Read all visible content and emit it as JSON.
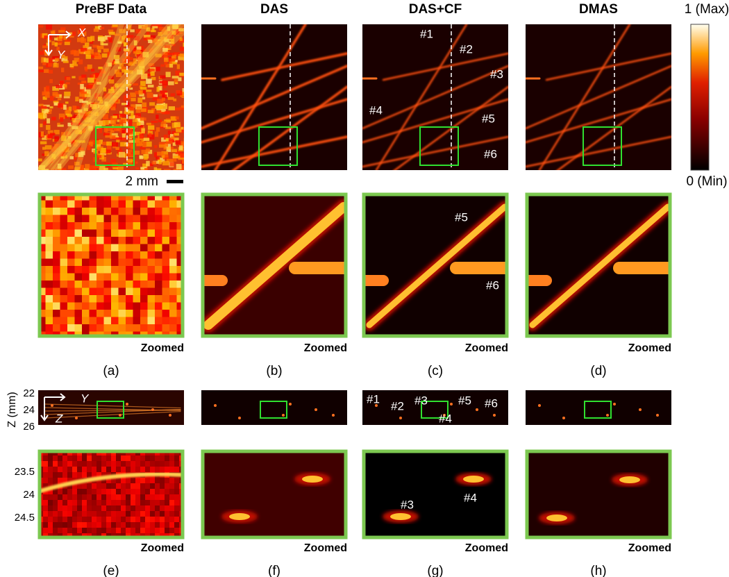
{
  "columns": [
    {
      "title": "PreBF Data"
    },
    {
      "title": "DAS"
    },
    {
      "title": "DAS+CF"
    },
    {
      "title": "DMAS"
    }
  ],
  "colorbar": {
    "max_label": "1 (Max)",
    "min_label": "0 (Min)"
  },
  "scale_bar": "2 mm",
  "zoomed_label": "Zoomed",
  "letters": [
    "(a)",
    "(b)",
    "(c)",
    "(d)",
    "(e)",
    "(f)",
    "(g)",
    "(h)"
  ],
  "axis_labels": {
    "top_x": "X",
    "top_y": "Y",
    "side_y": "Y",
    "side_z": "Z"
  },
  "side_axis": {
    "label": "Z (mm)",
    "ticks": [
      22,
      24,
      26
    ]
  },
  "zoom_axis": {
    "ticks": [
      23.5,
      24,
      24.5
    ]
  },
  "annotations": {
    "top_c": [
      "#1",
      "#2",
      "#3",
      "#4",
      "#5",
      "#6"
    ],
    "zoom_c": [
      "#5",
      "#6"
    ],
    "side_c": [
      "#1",
      "#2",
      "#3",
      "#4",
      "#5",
      "#6"
    ],
    "side_zoom_c": [
      "#3",
      "#4"
    ]
  }
}
